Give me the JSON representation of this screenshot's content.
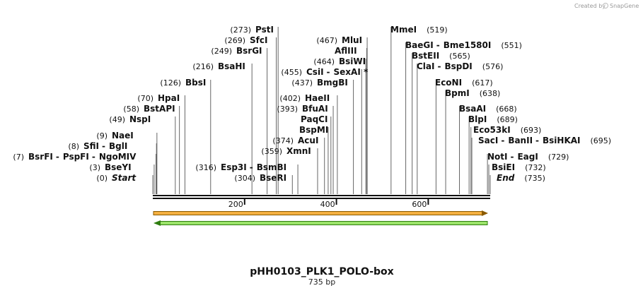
{
  "credit": {
    "prefix": "Created by",
    "brand": "SnapGene"
  },
  "plasmid": {
    "name": "pHH0103_PLK1_POLO-box",
    "length_label": "735 bp",
    "length": 735
  },
  "axis_ticks": [
    {
      "value": 200,
      "label": "200"
    },
    {
      "value": 400,
      "label": "400"
    },
    {
      "value": 600,
      "label": "600"
    }
  ],
  "sites": [
    {
      "pos": "(0)",
      "names": [
        "Start"
      ],
      "italic": true,
      "cuts": [
        0
      ]
    },
    {
      "pos": "(3)",
      "names": [
        "BseYI"
      ],
      "cuts": [
        3
      ]
    },
    {
      "pos": "(7)",
      "names": [
        "BsrFI",
        "PspFI",
        "NgoMIV"
      ],
      "cuts": [
        7
      ]
    },
    {
      "pos": "(8)",
      "names": [
        "SfiI",
        "BglI"
      ],
      "cuts": [
        8
      ]
    },
    {
      "pos": "(9)",
      "names": [
        "NaeI"
      ],
      "cuts": [
        9
      ]
    },
    {
      "pos": "(49)",
      "names": [
        "NspI"
      ],
      "cuts": [
        49
      ]
    },
    {
      "pos": "(58)",
      "names": [
        "BstAPI"
      ],
      "cuts": [
        58
      ]
    },
    {
      "pos": "(70)",
      "names": [
        "HpaI"
      ],
      "cuts": [
        70
      ]
    },
    {
      "pos": "(126)",
      "names": [
        "BbsI"
      ],
      "cuts": [
        126
      ]
    },
    {
      "pos": "(216)",
      "names": [
        "BsaHI"
      ],
      "cuts": [
        216
      ]
    },
    {
      "pos": "(249)",
      "names": [
        "BsrGI"
      ],
      "cuts": [
        249
      ]
    },
    {
      "pos": "(269)",
      "names": [
        "SfcI"
      ],
      "cuts": [
        269
      ]
    },
    {
      "pos": "(273)",
      "names": [
        "PstI"
      ],
      "cuts": [
        273
      ]
    },
    {
      "pos": "(304)",
      "names": [
        "BseRI"
      ],
      "cuts": [
        304
      ]
    },
    {
      "pos": "(316)",
      "names": [
        "Esp3I",
        "BsmBI"
      ],
      "cuts": [
        316
      ]
    },
    {
      "pos": "(359)",
      "names": [
        "XmnI"
      ],
      "cuts": [
        359
      ]
    },
    {
      "pos": "(374)",
      "names": [
        "AcuI"
      ],
      "cuts": [
        374
      ]
    },
    {
      "pos": "",
      "names": [
        "BspMI"
      ],
      "cuts": [
        382
      ]
    },
    {
      "pos": "",
      "names": [
        "PaqCI"
      ],
      "cuts": [
        388
      ]
    },
    {
      "pos": "(393)",
      "names": [
        "BfuAI"
      ],
      "cuts": [
        393
      ]
    },
    {
      "pos": "(402)",
      "names": [
        "HaeII"
      ],
      "cuts": [
        402
      ]
    },
    {
      "pos": "(437)",
      "names": [
        "BmgBI"
      ],
      "cuts": [
        437
      ]
    },
    {
      "pos": "(455)",
      "names": [
        "CsiI",
        "SexAI *"
      ],
      "cuts": [
        455
      ]
    },
    {
      "pos": "(464)",
      "names": [
        "BsiWI"
      ],
      "cuts": [
        464
      ]
    },
    {
      "pos": "",
      "names": [
        "AflIII"
      ],
      "cuts": [
        466
      ]
    },
    {
      "pos": "(467)",
      "names": [
        "MluI"
      ],
      "cuts": [
        467
      ]
    },
    {
      "pos": "(519)",
      "names": [
        "MmeI"
      ],
      "cuts": [
        519
      ],
      "pos_after": true
    },
    {
      "pos": "(551)",
      "names": [
        "BaeGI",
        "Bme1580I"
      ],
      "cuts": [
        551
      ],
      "pos_after": true
    },
    {
      "pos": "(565)",
      "names": [
        "BstEII"
      ],
      "cuts": [
        565
      ],
      "pos_after": true
    },
    {
      "pos": "(576)",
      "names": [
        "ClaI",
        "BspDI"
      ],
      "cuts": [
        576
      ],
      "pos_after": true
    },
    {
      "pos": "(617)",
      "names": [
        "EcoNI"
      ],
      "cuts": [
        617
      ],
      "pos_after": true
    },
    {
      "pos": "(638)",
      "names": [
        "BpmI"
      ],
      "cuts": [
        638
      ],
      "pos_after": true
    },
    {
      "pos": "(668)",
      "names": [
        "BsaAI"
      ],
      "cuts": [
        668
      ],
      "pos_after": true
    },
    {
      "pos": "(689)",
      "names": [
        "BlpI"
      ],
      "cuts": [
        689
      ],
      "pos_after": true
    },
    {
      "pos": "(693)",
      "names": [
        "Eco53kI"
      ],
      "cuts": [
        693
      ],
      "pos_after": true
    },
    {
      "pos": "(695)",
      "names": [
        "SacI",
        "BanII",
        "BsiHKAI"
      ],
      "cuts": [
        695
      ],
      "pos_after": true
    },
    {
      "pos": "(729)",
      "names": [
        "NotI",
        "EagI"
      ],
      "cuts": [
        729
      ],
      "pos_after": true
    },
    {
      "pos": "(732)",
      "names": [
        "BsiEI"
      ],
      "cuts": [
        732
      ],
      "pos_after": true
    },
    {
      "pos": "(735)",
      "names": [
        "End"
      ],
      "italic": true,
      "cuts": [
        735
      ],
      "pos_after": true
    }
  ],
  "features": [
    {
      "name": "forward-feature",
      "direction": "forward",
      "color": "#f5b041",
      "border": "#8a5a00"
    },
    {
      "name": "reverse-feature",
      "direction": "reverse",
      "color": "#9be36a",
      "border": "#2e7d0f"
    }
  ]
}
